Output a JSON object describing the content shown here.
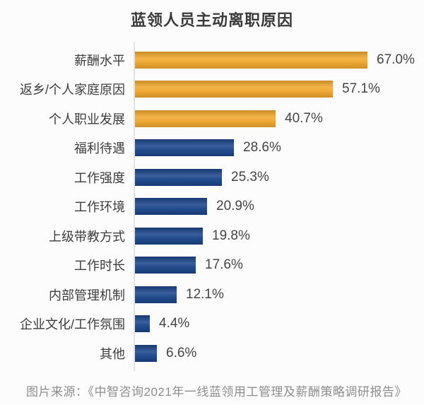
{
  "title": "蓝领人员主动离职原因",
  "source_note": "图片来源：《中智咨询2021年一线蓝领用工管理及薪酬策略调研报告》",
  "colors": {
    "highlight_orange": "#F0A72C",
    "primary_navy": "#1A4489",
    "axis_gray": "#E2E2E2"
  },
  "chart_data": {
    "type": "bar",
    "orientation": "horizontal",
    "title": "蓝领人员主动离职原因",
    "categories": [
      "薪酬水平",
      "返乡/个人家庭原因",
      "个人职业发展",
      "福利待遇",
      "工作强度",
      "工作环境",
      "上级带教方式",
      "工作时长",
      "内部管理机制",
      "企业文化/工作氛围",
      "其他"
    ],
    "values": [
      67.0,
      57.1,
      40.7,
      28.6,
      25.3,
      20.9,
      19.8,
      17.6,
      12.1,
      4.4,
      6.6
    ],
    "display_values": [
      "67.0%",
      "57.1%",
      "40.7%",
      "28.6%",
      "25.3%",
      "20.9%",
      "19.8%",
      "17.6%",
      "12.1%",
      "4.4%",
      "6.6%"
    ],
    "highlight_count": 3,
    "xlim": [
      0,
      70
    ],
    "grid": false,
    "legend": false
  }
}
